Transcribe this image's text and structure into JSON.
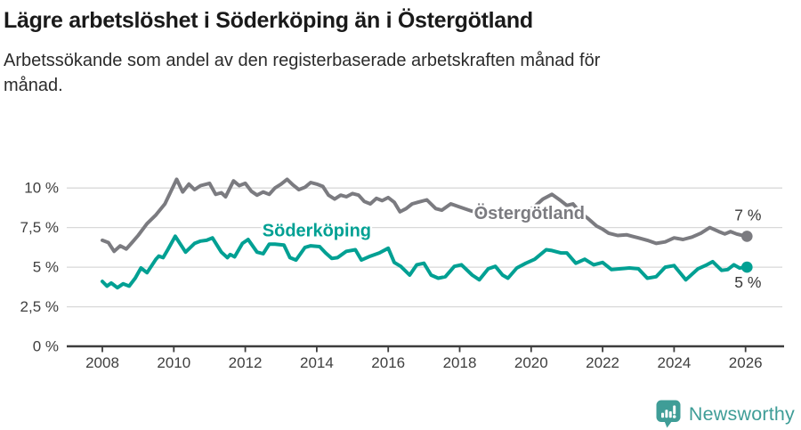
{
  "header": {
    "title": "Lägre arbetslöshet i Söderköping än i Östergötland",
    "subtitle": "Arbetssökande som andel av den registerbaserade arbetskraften månad för månad."
  },
  "footer": {
    "brand": "Newsworthy",
    "brand_color": "#3f9d97",
    "logo_icon": "bar-chart-speech-bubble-icon"
  },
  "chart_data": {
    "type": "line",
    "title": "Lägre arbetslöshet i Söderköping än i Östergötland",
    "subtitle": "Arbetssökande som andel av den registerbaserade arbetskraften månad för månad.",
    "unit": "%",
    "grid": true,
    "grid_color": "#d9d9d9",
    "axis_color": "#3d3d3d",
    "tick_label_color": "#3f3f3f",
    "end_label_color": "#383838",
    "x_axis": {
      "ticks": [
        2008,
        2010,
        2012,
        2014,
        2016,
        2018,
        2020,
        2022,
        2024,
        2026
      ],
      "labels": [
        "2008",
        "2010",
        "2012",
        "2014",
        "2016",
        "2018",
        "2020",
        "2022",
        "2024",
        "2026"
      ],
      "range": [
        2007.0,
        2027.1
      ]
    },
    "y_axis": {
      "ticks": [
        0,
        2.5,
        5,
        7.5,
        10
      ],
      "labels": [
        "0 %",
        "2,5 %",
        "5 %",
        "7,5 %",
        "10 %"
      ],
      "range": [
        0,
        11.2
      ]
    },
    "series": [
      {
        "id": "ostergotland",
        "name": "Östergötland",
        "color": "#7b7b80",
        "label_pos": {
          "x": 2019.95,
          "y": 8.45
        },
        "end_label": "7 %",
        "end_label_side": "above",
        "points": [
          [
            2008,
            6.7
          ],
          [
            2008.17,
            6.55
          ],
          [
            2008.33,
            6.0
          ],
          [
            2008.5,
            6.35
          ],
          [
            2008.67,
            6.15
          ],
          [
            2008.83,
            6.55
          ],
          [
            2009,
            7.0
          ],
          [
            2009.25,
            7.75
          ],
          [
            2009.5,
            8.3
          ],
          [
            2009.75,
            9.0
          ],
          [
            2009.92,
            9.8
          ],
          [
            2010.08,
            10.55
          ],
          [
            2010.25,
            9.75
          ],
          [
            2010.42,
            10.25
          ],
          [
            2010.58,
            9.9
          ],
          [
            2010.75,
            10.15
          ],
          [
            2011,
            10.3
          ],
          [
            2011.17,
            9.6
          ],
          [
            2011.33,
            9.7
          ],
          [
            2011.45,
            9.45
          ],
          [
            2011.67,
            10.45
          ],
          [
            2011.83,
            10.15
          ],
          [
            2012,
            10.3
          ],
          [
            2012.17,
            9.8
          ],
          [
            2012.33,
            9.55
          ],
          [
            2012.5,
            9.75
          ],
          [
            2012.67,
            9.6
          ],
          [
            2012.83,
            10.0
          ],
          [
            2013,
            10.25
          ],
          [
            2013.17,
            10.55
          ],
          [
            2013.33,
            10.2
          ],
          [
            2013.5,
            9.9
          ],
          [
            2013.67,
            10.05
          ],
          [
            2013.83,
            10.35
          ],
          [
            2014,
            10.25
          ],
          [
            2014.17,
            10.1
          ],
          [
            2014.33,
            9.55
          ],
          [
            2014.5,
            9.3
          ],
          [
            2014.67,
            9.55
          ],
          [
            2014.83,
            9.45
          ],
          [
            2015,
            9.65
          ],
          [
            2015.17,
            9.55
          ],
          [
            2015.33,
            9.15
          ],
          [
            2015.5,
            9.0
          ],
          [
            2015.67,
            9.35
          ],
          [
            2015.83,
            9.2
          ],
          [
            2016,
            9.4
          ],
          [
            2016.17,
            9.1
          ],
          [
            2016.33,
            8.5
          ],
          [
            2016.5,
            8.7
          ],
          [
            2016.67,
            9.0
          ],
          [
            2016.83,
            9.1
          ],
          [
            2017.08,
            9.25
          ],
          [
            2017.33,
            8.7
          ],
          [
            2017.5,
            8.6
          ],
          [
            2017.75,
            9.0
          ],
          [
            2018,
            8.8
          ],
          [
            2018.33,
            8.55
          ],
          [
            2018.58,
            8.4
          ],
          [
            2018.83,
            8.3
          ],
          [
            2019.08,
            8.2
          ],
          [
            2019.33,
            8.05
          ],
          [
            2019.5,
            8.25
          ],
          [
            2019.67,
            8.35
          ],
          [
            2019.92,
            8.6
          ],
          [
            2020.08,
            8.8
          ],
          [
            2020.33,
            9.3
          ],
          [
            2020.58,
            9.6
          ],
          [
            2020.83,
            9.2
          ],
          [
            2021,
            8.9
          ],
          [
            2021.17,
            9.0
          ],
          [
            2021.42,
            8.35
          ],
          [
            2021.58,
            8.1
          ],
          [
            2021.83,
            7.6
          ],
          [
            2022,
            7.4
          ],
          [
            2022.17,
            7.15
          ],
          [
            2022.42,
            7.0
          ],
          [
            2022.67,
            7.05
          ],
          [
            2022.83,
            6.95
          ],
          [
            2023,
            6.85
          ],
          [
            2023.25,
            6.7
          ],
          [
            2023.5,
            6.5
          ],
          [
            2023.75,
            6.6
          ],
          [
            2024,
            6.85
          ],
          [
            2024.25,
            6.75
          ],
          [
            2024.5,
            6.9
          ],
          [
            2024.75,
            7.15
          ],
          [
            2025,
            7.5
          ],
          [
            2025.25,
            7.25
          ],
          [
            2025.42,
            7.1
          ],
          [
            2025.58,
            7.25
          ],
          [
            2025.75,
            7.1
          ],
          [
            2025.92,
            7.0
          ],
          [
            2026.04,
            6.95
          ]
        ]
      },
      {
        "id": "soderkoping",
        "name": "Söderköping",
        "color": "#00a093",
        "label_pos": {
          "x": 2014.0,
          "y": 7.35
        },
        "end_label": "5 %",
        "end_label_side": "below",
        "points": [
          [
            2008,
            4.1
          ],
          [
            2008.13,
            3.8
          ],
          [
            2008.25,
            4.0
          ],
          [
            2008.42,
            3.7
          ],
          [
            2008.58,
            3.95
          ],
          [
            2008.75,
            3.8
          ],
          [
            2008.92,
            4.3
          ],
          [
            2009.08,
            4.95
          ],
          [
            2009.25,
            4.65
          ],
          [
            2009.5,
            5.5
          ],
          [
            2009.58,
            5.7
          ],
          [
            2009.7,
            5.6
          ],
          [
            2009.83,
            6.1
          ],
          [
            2010.04,
            6.95
          ],
          [
            2010.33,
            5.95
          ],
          [
            2010.58,
            6.5
          ],
          [
            2010.75,
            6.65
          ],
          [
            2010.92,
            6.7
          ],
          [
            2011.08,
            6.85
          ],
          [
            2011.33,
            5.95
          ],
          [
            2011.5,
            5.6
          ],
          [
            2011.58,
            5.8
          ],
          [
            2011.7,
            5.65
          ],
          [
            2011.92,
            6.5
          ],
          [
            2012.08,
            6.75
          ],
          [
            2012.33,
            5.95
          ],
          [
            2012.5,
            5.85
          ],
          [
            2012.67,
            6.45
          ],
          [
            2012.83,
            6.45
          ],
          [
            2013.08,
            6.4
          ],
          [
            2013.25,
            5.6
          ],
          [
            2013.42,
            5.45
          ],
          [
            2013.67,
            6.25
          ],
          [
            2013.83,
            6.35
          ],
          [
            2014.08,
            6.3
          ],
          [
            2014.25,
            5.9
          ],
          [
            2014.42,
            5.55
          ],
          [
            2014.58,
            5.6
          ],
          [
            2014.83,
            6.0
          ],
          [
            2015.08,
            6.1
          ],
          [
            2015.25,
            5.45
          ],
          [
            2015.5,
            5.7
          ],
          [
            2015.75,
            5.9
          ],
          [
            2016,
            6.2
          ],
          [
            2016.17,
            5.3
          ],
          [
            2016.35,
            5.05
          ],
          [
            2016.6,
            4.5
          ],
          [
            2016.8,
            5.15
          ],
          [
            2017,
            5.25
          ],
          [
            2017.2,
            4.5
          ],
          [
            2017.4,
            4.3
          ],
          [
            2017.6,
            4.4
          ],
          [
            2017.85,
            5.05
          ],
          [
            2018.05,
            5.15
          ],
          [
            2018.35,
            4.5
          ],
          [
            2018.55,
            4.2
          ],
          [
            2018.8,
            4.9
          ],
          [
            2019,
            5.05
          ],
          [
            2019.2,
            4.5
          ],
          [
            2019.35,
            4.3
          ],
          [
            2019.6,
            4.95
          ],
          [
            2019.85,
            5.25
          ],
          [
            2020.1,
            5.5
          ],
          [
            2020.42,
            6.1
          ],
          [
            2020.58,
            6.05
          ],
          [
            2020.83,
            5.9
          ],
          [
            2021,
            5.9
          ],
          [
            2021.25,
            5.25
          ],
          [
            2021.5,
            5.5
          ],
          [
            2021.75,
            5.15
          ],
          [
            2022,
            5.3
          ],
          [
            2022.25,
            4.85
          ],
          [
            2022.5,
            4.9
          ],
          [
            2022.75,
            4.95
          ],
          [
            2023,
            4.9
          ],
          [
            2023.25,
            4.3
          ],
          [
            2023.5,
            4.4
          ],
          [
            2023.75,
            5.0
          ],
          [
            2024,
            5.1
          ],
          [
            2024.33,
            4.2
          ],
          [
            2024.67,
            4.9
          ],
          [
            2024.92,
            5.15
          ],
          [
            2025.08,
            5.35
          ],
          [
            2025.33,
            4.8
          ],
          [
            2025.5,
            4.85
          ],
          [
            2025.67,
            5.15
          ],
          [
            2025.83,
            4.95
          ],
          [
            2026.04,
            5.0
          ]
        ]
      }
    ]
  }
}
